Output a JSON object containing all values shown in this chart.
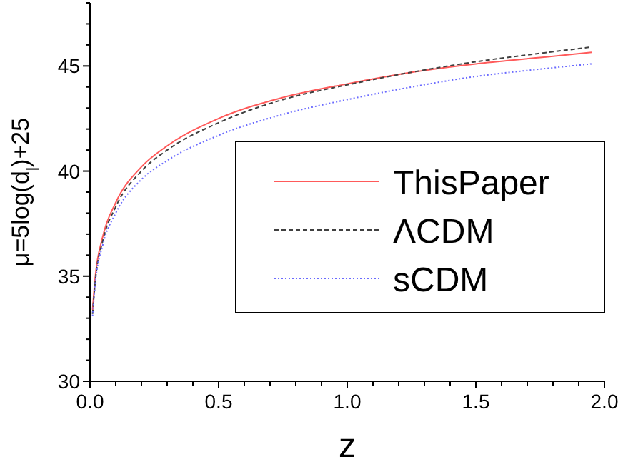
{
  "chart_data": {
    "type": "line",
    "xlabel": "z",
    "ylabel": "μ=5log(d$_{l}$)+25",
    "xlim": [
      0,
      2
    ],
    "ylim": [
      30,
      48
    ],
    "xticks": [
      {
        "value": 0,
        "label": "0.0"
      },
      {
        "value": 0.1,
        "label": null
      },
      {
        "value": 0.2,
        "label": null
      },
      {
        "value": 0.3,
        "label": null
      },
      {
        "value": 0.4,
        "label": null
      },
      {
        "value": 0.5,
        "label": "0.5"
      },
      {
        "value": 0.6,
        "label": null
      },
      {
        "value": 0.7,
        "label": null
      },
      {
        "value": 0.8,
        "label": null
      },
      {
        "value": 0.9,
        "label": null
      },
      {
        "value": 1,
        "label": "1.0"
      },
      {
        "value": 1.1,
        "label": null
      },
      {
        "value": 1.2,
        "label": null
      },
      {
        "value": 1.3,
        "label": null
      },
      {
        "value": 1.4,
        "label": null
      },
      {
        "value": 1.5,
        "label": "1.5"
      },
      {
        "value": 1.6,
        "label": null
      },
      {
        "value": 1.7,
        "label": null
      },
      {
        "value": 1.8,
        "label": null
      },
      {
        "value": 1.9,
        "label": null
      },
      {
        "value": 2,
        "label": "2.0"
      }
    ],
    "yticks": [
      30,
      {
        "value": 31,
        "label": null
      },
      {
        "value": 32,
        "label": null
      },
      {
        "value": 33,
        "label": null
      },
      {
        "value": 34,
        "label": null
      },
      35,
      {
        "value": 36,
        "label": null
      },
      {
        "value": 37,
        "label": null
      },
      {
        "value": 38,
        "label": null
      },
      {
        "value": 39,
        "label": null
      },
      40,
      {
        "value": 41,
        "label": null
      },
      {
        "value": 42,
        "label": null
      },
      {
        "value": 43,
        "label": null
      },
      {
        "value": 44,
        "label": null
      },
      45,
      {
        "value": 46,
        "label": null
      },
      {
        "value": 47,
        "label": null
      },
      {
        "value": 48,
        "label": null
      }
    ],
    "x": [
      0.01,
      0.02,
      0.05,
      0.1,
      0.2,
      0.3,
      0.5,
      0.75,
      1.0,
      1.25,
      1.5,
      1.75,
      1.95
    ],
    "grid": false,
    "legend": "right",
    "series": [
      {
        "name": "ThisPaper",
        "color": "#ff5a5a",
        "line_style": "solid",
        "values": [
          33.4,
          34.9,
          36.9,
          38.5,
          40.2,
          41.2,
          42.5,
          43.5,
          44.15,
          44.7,
          45.1,
          45.4,
          45.65
        ]
      },
      {
        "name": "ΛCDM",
        "color": "#404040",
        "line_style": "dashed",
        "values": [
          33.2,
          34.7,
          36.7,
          38.3,
          40.0,
          41.0,
          42.3,
          43.4,
          44.1,
          44.7,
          45.2,
          45.6,
          45.9
        ]
      },
      {
        "name": "sCDM",
        "color": "#6a6aff",
        "line_style": "dotted",
        "values": [
          33.1,
          34.6,
          36.5,
          38.0,
          39.6,
          40.5,
          41.7,
          42.7,
          43.4,
          44.0,
          44.5,
          44.85,
          45.1
        ]
      }
    ]
  }
}
